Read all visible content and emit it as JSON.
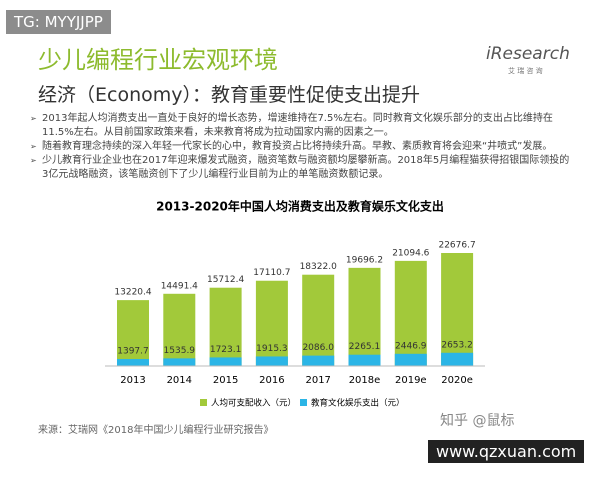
{
  "header": {
    "watermark": "TG: MYYJJPP",
    "title": "少儿编程行业宏观环境",
    "logo": "iResearch",
    "logo_sub": "艾 瑞 咨 询"
  },
  "subtitle": "经济（Economy）：教育重要性促使支出提升",
  "bullets": [
    "2013年起人均消费支出一直处于良好的增长态势，增速维持在7.5%左右。同时教育文化娱乐部分的支出占比维持在11.5%左右。从目前国家政策来看，未来教育将成为拉动国家内需的因素之一。",
    "随着教育理念持续的深入年轻一代家长的心中，教育投资占比将持续升高。早教、素质教育将会迎来“井喷式”发展。",
    "少儿教育行业企业也在2017年迎来爆发式融资，融资笔数与融资额均屡攀新高。2018年5月编程猫获得招银国际领投的3亿元战略融资，该笔融资创下了少儿编程行业目前为止的单笔融资数额记录。"
  ],
  "chart_data": {
    "type": "bar",
    "title": "2013-2020年中国人均消费支出及教育娱乐文化支出",
    "categories": [
      "2013",
      "2014",
      "2015",
      "2016",
      "2017",
      "2018e",
      "2019e",
      "2020e"
    ],
    "series": [
      {
        "name": "人均可支配收入（元）",
        "color": "#a2c93a",
        "values": [
          13220.4,
          14491.4,
          15712.4,
          17110.7,
          18322.0,
          19696.2,
          21094.6,
          22676.7
        ],
        "value_labels": [
          "13220.4",
          "14491.4",
          "15712.4",
          "17110.7",
          "18322.0",
          "19696.2",
          "21094.6",
          "22676.7"
        ]
      },
      {
        "name": "教育文化娱乐支出（元）",
        "color": "#2bb5e6",
        "values": [
          1397.7,
          1535.9,
          1723.1,
          1915.3,
          2086.0,
          2265.1,
          2446.9,
          2653.2
        ],
        "value_labels": [
          "1397.7",
          "1535.9",
          "1723.1",
          "1915.3",
          "2086.0",
          "2265.1",
          "2446.9",
          "2653.2"
        ]
      }
    ],
    "overlap": true,
    "legend": "bottom"
  },
  "source": "来源：艾瑞网《2018年中国少儿编程行业研究报告》",
  "watermarks": [
    "知乎 @鼠标",
    "www.qzxuan.com"
  ]
}
